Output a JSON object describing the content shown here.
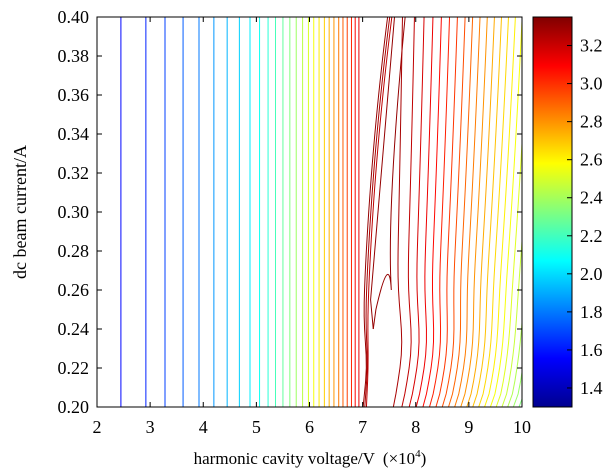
{
  "chart_data": {
    "type": "contour",
    "title": "",
    "xlabel": "harmonic cavity voltage/V",
    "xlabel_multiplier": "(×10",
    "xlabel_multiplier_exp": "4",
    "xlabel_multiplier_close": ")",
    "ylabel": "dc beam current/A",
    "xlim": [
      2,
      10
    ],
    "ylim": [
      0.2,
      0.4
    ],
    "x_ticks": [
      "2",
      "3",
      "4",
      "5",
      "6",
      "7",
      "8",
      "9",
      "10"
    ],
    "y_ticks": [
      "0.20",
      "0.22",
      "0.24",
      "0.26",
      "0.28",
      "0.30",
      "0.32",
      "0.34",
      "0.36",
      "0.38",
      "0.40"
    ],
    "colorbar": {
      "colormap": "jet",
      "range": [
        1.3,
        3.35
      ],
      "ticks": [
        "1.4",
        "1.6",
        "1.8",
        "2.0",
        "2.2",
        "2.4",
        "2.6",
        "2.8",
        "3.0",
        "3.2"
      ]
    },
    "contours": {
      "vertical_levels_x": [
        2.45,
        2.92,
        3.28,
        3.62,
        3.92,
        4.2,
        4.45,
        4.68,
        4.88,
        5.06,
        5.22,
        5.36,
        5.5,
        5.63,
        5.75,
        5.87,
        5.98,
        6.08,
        6.18,
        6.28,
        6.37,
        6.46,
        6.55,
        6.63,
        6.71,
        6.79,
        6.86,
        6.93
      ],
      "peak_x_at_ymin": 7.1,
      "peak_x_at_ymax": 7.65,
      "notch_tip": [
        7.2,
        0.24
      ]
    },
    "colors": {
      "axis": "#000000",
      "background": "#ffffff"
    }
  }
}
